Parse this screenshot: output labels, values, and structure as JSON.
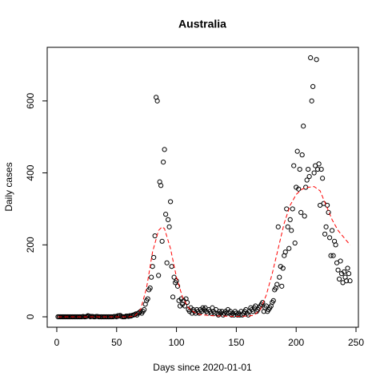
{
  "chart_data": {
    "type": "scatter",
    "title": "Australia",
    "xlabel": "Days since 2020-01-01",
    "ylabel": "Daily cases",
    "xlim": [
      -8,
      252
    ],
    "ylim": [
      -29,
      749
    ],
    "xticks": [
      0,
      50,
      100,
      150,
      200,
      250
    ],
    "yticks": [
      0,
      200,
      400,
      600
    ],
    "series": [
      {
        "type": "scatter",
        "color": "#000000",
        "x": [
          1,
          2,
          3,
          4,
          5,
          6,
          7,
          8,
          9,
          10,
          11,
          12,
          13,
          14,
          15,
          16,
          17,
          18,
          19,
          20,
          21,
          22,
          23,
          24,
          25,
          26,
          27,
          28,
          29,
          30,
          31,
          32,
          33,
          34,
          35,
          36,
          37,
          38,
          39,
          40,
          41,
          42,
          43,
          44,
          45,
          46,
          47,
          48,
          49,
          50,
          51,
          52,
          53,
          54,
          55,
          56,
          57,
          58,
          59,
          60,
          61,
          62,
          63,
          64,
          65,
          66,
          67,
          68,
          69,
          70,
          71,
          72,
          73,
          74,
          75,
          76,
          77,
          78,
          79,
          80,
          81,
          82,
          83,
          84,
          85,
          86,
          87,
          88,
          89,
          90,
          91,
          92,
          93,
          94,
          95,
          96,
          97,
          98,
          99,
          100,
          101,
          102,
          103,
          104,
          105,
          106,
          107,
          108,
          109,
          110,
          111,
          112,
          113,
          114,
          115,
          116,
          117,
          118,
          119,
          120,
          121,
          122,
          123,
          124,
          125,
          126,
          127,
          128,
          129,
          130,
          131,
          132,
          133,
          134,
          135,
          136,
          137,
          138,
          139,
          140,
          141,
          142,
          143,
          144,
          145,
          146,
          147,
          148,
          149,
          150,
          151,
          152,
          153,
          154,
          155,
          156,
          157,
          158,
          159,
          160,
          161,
          162,
          163,
          164,
          165,
          166,
          167,
          168,
          169,
          170,
          171,
          172,
          173,
          174,
          175,
          176,
          177,
          178,
          179,
          180,
          181,
          182,
          183,
          184,
          185,
          186,
          187,
          188,
          189,
          190,
          191,
          192,
          193,
          194,
          195,
          196,
          197,
          198,
          199,
          200,
          201,
          202,
          203,
          204,
          205,
          206,
          207,
          208,
          209,
          210,
          211,
          212,
          213,
          214,
          215,
          216,
          217,
          218,
          219,
          220,
          221,
          222,
          223,
          224,
          225,
          226,
          227,
          228,
          229,
          230,
          231,
          232,
          233,
          234,
          235,
          236,
          237,
          238,
          239,
          240,
          241,
          242,
          243,
          244,
          245
        ],
        "values": [
          0,
          0,
          0,
          0,
          0,
          0,
          0,
          0,
          0,
          0,
          0,
          0,
          0,
          0,
          0,
          0,
          0,
          0,
          0,
          0,
          0,
          1,
          0,
          0,
          1,
          3,
          2,
          0,
          1,
          1,
          0,
          0,
          1,
          1,
          0,
          0,
          0,
          0,
          0,
          0,
          0,
          0,
          0,
          0,
          0,
          0,
          0,
          1,
          1,
          0,
          3,
          2,
          4,
          1,
          0,
          0,
          0,
          2,
          2,
          1,
          3,
          2,
          4,
          5,
          6,
          8,
          5,
          10,
          12,
          15,
          10,
          15,
          20,
          35,
          45,
          50,
          75,
          80,
          110,
          140,
          165,
          225,
          610,
          600,
          115,
          375,
          365,
          210,
          430,
          465,
          285,
          150,
          270,
          250,
          320,
          140,
          55,
          110,
          95,
          100,
          85,
          45,
          30,
          50,
          35,
          45,
          30,
          50,
          40,
          20,
          15,
          25,
          10,
          20,
          15,
          10,
          20,
          15,
          10,
          20,
          15,
          25,
          20,
          25,
          15,
          10,
          20,
          15,
          10,
          25,
          15,
          10,
          20,
          10,
          5,
          15,
          10,
          15,
          5,
          10,
          15,
          10,
          20,
          10,
          15,
          5,
          10,
          5,
          15,
          10,
          5,
          10,
          5,
          15,
          5,
          10,
          15,
          20,
          10,
          5,
          15,
          25,
          20,
          15,
          25,
          30,
          15,
          20,
          25,
          30,
          35,
          40,
          15,
          25,
          30,
          15,
          20,
          25,
          30,
          40,
          45,
          75,
          80,
          90,
          250,
          110,
          140,
          85,
          135,
          170,
          180,
          300,
          250,
          190,
          270,
          240,
          300,
          420,
          205,
          360,
          460,
          355,
          410,
          290,
          450,
          530,
          280,
          360,
          380,
          410,
          390,
          720,
          600,
          640,
          400,
          420,
          715,
          410,
          425,
          310,
          410,
          385,
          315,
          230,
          250,
          310,
          290,
          220,
          170,
          240,
          170,
          210,
          200,
          150,
          130,
          105,
          155,
          120,
          95,
          125,
          110,
          100,
          135,
          120,
          100
        ]
      },
      {
        "type": "line",
        "color": "#ff0000",
        "dash": "dashed",
        "x": [
          1,
          30,
          60,
          65,
          70,
          75,
          80,
          85,
          88,
          90,
          95,
          100,
          105,
          110,
          115,
          120,
          130,
          140,
          150,
          160,
          165,
          170,
          175,
          180,
          185,
          190,
          195,
          200,
          205,
          210,
          215,
          220,
          225,
          230,
          235,
          240,
          245
        ],
        "values": [
          0,
          0,
          0,
          2,
          20,
          80,
          180,
          240,
          250,
          245,
          190,
          110,
          55,
          25,
          12,
          6,
          3,
          2,
          1,
          2,
          5,
          20,
          60,
          120,
          190,
          260,
          310,
          340,
          355,
          360,
          362,
          350,
          310,
          270,
          240,
          220,
          200
        ]
      }
    ]
  }
}
